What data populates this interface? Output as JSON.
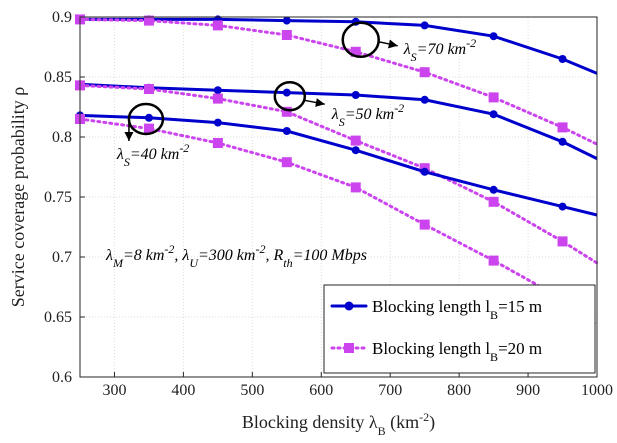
{
  "chart_data": {
    "type": "line",
    "xlabel": "Blocking density λ_B (km^-2)",
    "ylabel": "Service coverage probability ρ",
    "xlim": [
      250,
      1000
    ],
    "ylim": [
      0.6,
      0.9
    ],
    "xticks": [
      300,
      400,
      500,
      600,
      700,
      800,
      900,
      1000
    ],
    "yticks": [
      0.6,
      0.65,
      0.7,
      0.75,
      0.8,
      0.85,
      0.9
    ],
    "grid": true,
    "legend_position": "bottom-right",
    "legend": [
      {
        "label": "Blocking length l_B=15 m",
        "color": "#0000cc",
        "marker": "circle",
        "dash": "solid"
      },
      {
        "label": "Blocking length l_B=20 m",
        "color": "#cc44ee",
        "marker": "square",
        "dash": "dotted"
      }
    ],
    "series": [
      {
        "group": "λ_S=70",
        "legend_index": 0,
        "x": [
          250,
          350,
          450,
          550,
          650,
          750,
          850,
          950,
          1000
        ],
        "y": [
          0.898,
          0.898,
          0.898,
          0.897,
          0.896,
          0.893,
          0.884,
          0.865,
          0.853
        ]
      },
      {
        "group": "λ_S=70",
        "legend_index": 1,
        "x": [
          250,
          350,
          450,
          550,
          650,
          750,
          850,
          950,
          1000
        ],
        "y": [
          0.898,
          0.897,
          0.893,
          0.885,
          0.871,
          0.854,
          0.833,
          0.808,
          0.794
        ]
      },
      {
        "group": "λ_S=50",
        "legend_index": 0,
        "x": [
          250,
          350,
          450,
          550,
          650,
          750,
          850,
          950,
          1000
        ],
        "y": [
          0.844,
          0.841,
          0.839,
          0.837,
          0.835,
          0.831,
          0.819,
          0.796,
          0.782
        ]
      },
      {
        "group": "λ_S=50",
        "legend_index": 1,
        "x": [
          250,
          350,
          450,
          550,
          650,
          750,
          850,
          950,
          1000
        ],
        "y": [
          0.843,
          0.84,
          0.832,
          0.821,
          0.797,
          0.774,
          0.746,
          0.713,
          0.695
        ]
      },
      {
        "group": "λ_S=40",
        "legend_index": 0,
        "x": [
          250,
          350,
          450,
          550,
          650,
          750,
          850,
          950,
          1000
        ],
        "y": [
          0.818,
          0.816,
          0.812,
          0.805,
          0.789,
          0.771,
          0.756,
          0.742,
          0.735
        ]
      },
      {
        "group": "λ_S=40",
        "legend_index": 1,
        "x": [
          250,
          350,
          450,
          550,
          650,
          750,
          850,
          950,
          1000
        ],
        "y": [
          0.815,
          0.807,
          0.795,
          0.779,
          0.758,
          0.727,
          0.697,
          0.665,
          0.643
        ]
      }
    ],
    "annotations": [
      {
        "id": "ls70",
        "text": "λ_S=70 km^-2"
      },
      {
        "id": "ls50",
        "text": "λ_S=50 km^-2"
      },
      {
        "id": "ls40",
        "text": "λ_S=40 km^-2"
      },
      {
        "id": "params",
        "text": "λ_M=8 km^-2, λ_U=300 km^-2, R_th=100 Mbps"
      }
    ]
  }
}
